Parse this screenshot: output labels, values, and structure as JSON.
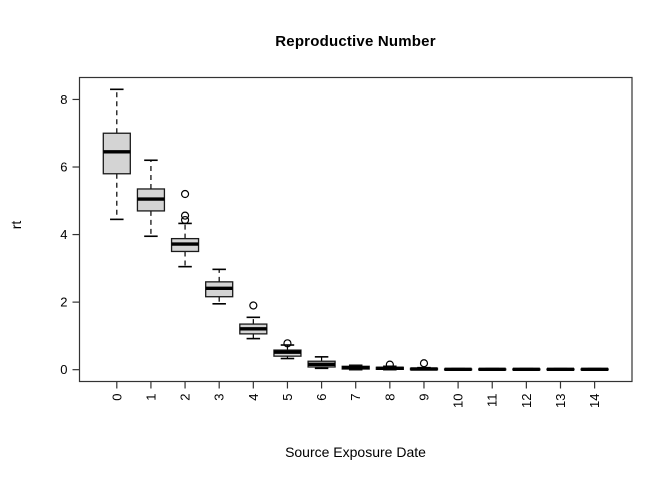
{
  "title": "Reproductive Number",
  "colors": {
    "box_fill": "#d4d4d4",
    "box_border": "#1a1a1a",
    "median": "#000000",
    "whisker": "#000000",
    "axis": "#333333",
    "background": "#ffffff"
  },
  "chart_data": {
    "type": "boxplot",
    "title": "Reproductive Number",
    "xlabel": "Source Exposure Date",
    "ylabel": "rt",
    "categories": [
      "0",
      "1",
      "2",
      "3",
      "4",
      "5",
      "6",
      "7",
      "8",
      "9",
      "10",
      "11",
      "12",
      "13",
      "14"
    ],
    "y_ticks": [
      0,
      2,
      4,
      6,
      8
    ],
    "ylim": [
      -0.35,
      8.65
    ],
    "grid": false,
    "legend": "none",
    "series": [
      {
        "category": "0",
        "whisker_low": 4.45,
        "q1": 5.8,
        "median": 6.45,
        "q3": 7.0,
        "whisker_high": 8.3,
        "outliers": []
      },
      {
        "category": "1",
        "whisker_low": 3.95,
        "q1": 4.7,
        "median": 5.05,
        "q3": 5.35,
        "whisker_high": 6.2,
        "outliers": []
      },
      {
        "category": "2",
        "whisker_low": 3.05,
        "q1": 3.5,
        "median": 3.72,
        "q3": 3.88,
        "whisker_high": 4.33,
        "outliers": [
          4.43,
          4.56,
          5.2
        ]
      },
      {
        "category": "3",
        "whisker_low": 1.95,
        "q1": 2.16,
        "median": 2.41,
        "q3": 2.6,
        "whisker_high": 2.97,
        "outliers": []
      },
      {
        "category": "4",
        "whisker_low": 0.92,
        "q1": 1.06,
        "median": 1.21,
        "q3": 1.35,
        "whisker_high": 1.55,
        "outliers": [
          1.9
        ]
      },
      {
        "category": "5",
        "whisker_low": 0.33,
        "q1": 0.4,
        "median": 0.52,
        "q3": 0.58,
        "whisker_high": 0.73,
        "outliers": [
          0.78
        ]
      },
      {
        "category": "6",
        "whisker_low": 0.04,
        "q1": 0.08,
        "median": 0.16,
        "q3": 0.25,
        "whisker_high": 0.38,
        "outliers": []
      },
      {
        "category": "7",
        "whisker_low": 0.0,
        "q1": 0.02,
        "median": 0.06,
        "q3": 0.1,
        "whisker_high": 0.13,
        "outliers": []
      },
      {
        "category": "8",
        "whisker_low": 0.0,
        "q1": 0.01,
        "median": 0.04,
        "q3": 0.07,
        "whisker_high": 0.1,
        "outliers": [
          0.15
        ]
      },
      {
        "category": "9",
        "whisker_low": 0.0,
        "q1": 0.0,
        "median": 0.02,
        "q3": 0.04,
        "whisker_high": 0.06,
        "outliers": [
          0.19
        ]
      },
      {
        "category": "10",
        "whisker_low": 0.0,
        "q1": 0.0,
        "median": 0.01,
        "q3": 0.02,
        "whisker_high": 0.03,
        "outliers": []
      },
      {
        "category": "11",
        "whisker_low": 0.0,
        "q1": 0.0,
        "median": 0.01,
        "q3": 0.02,
        "whisker_high": 0.03,
        "outliers": []
      },
      {
        "category": "12",
        "whisker_low": 0.0,
        "q1": 0.0,
        "median": 0.01,
        "q3": 0.02,
        "whisker_high": 0.03,
        "outliers": []
      },
      {
        "category": "13",
        "whisker_low": 0.0,
        "q1": 0.0,
        "median": 0.01,
        "q3": 0.02,
        "whisker_high": 0.03,
        "outliers": []
      },
      {
        "category": "14",
        "whisker_low": 0.0,
        "q1": 0.0,
        "median": 0.01,
        "q3": 0.02,
        "whisker_high": 0.03,
        "outliers": []
      }
    ]
  }
}
